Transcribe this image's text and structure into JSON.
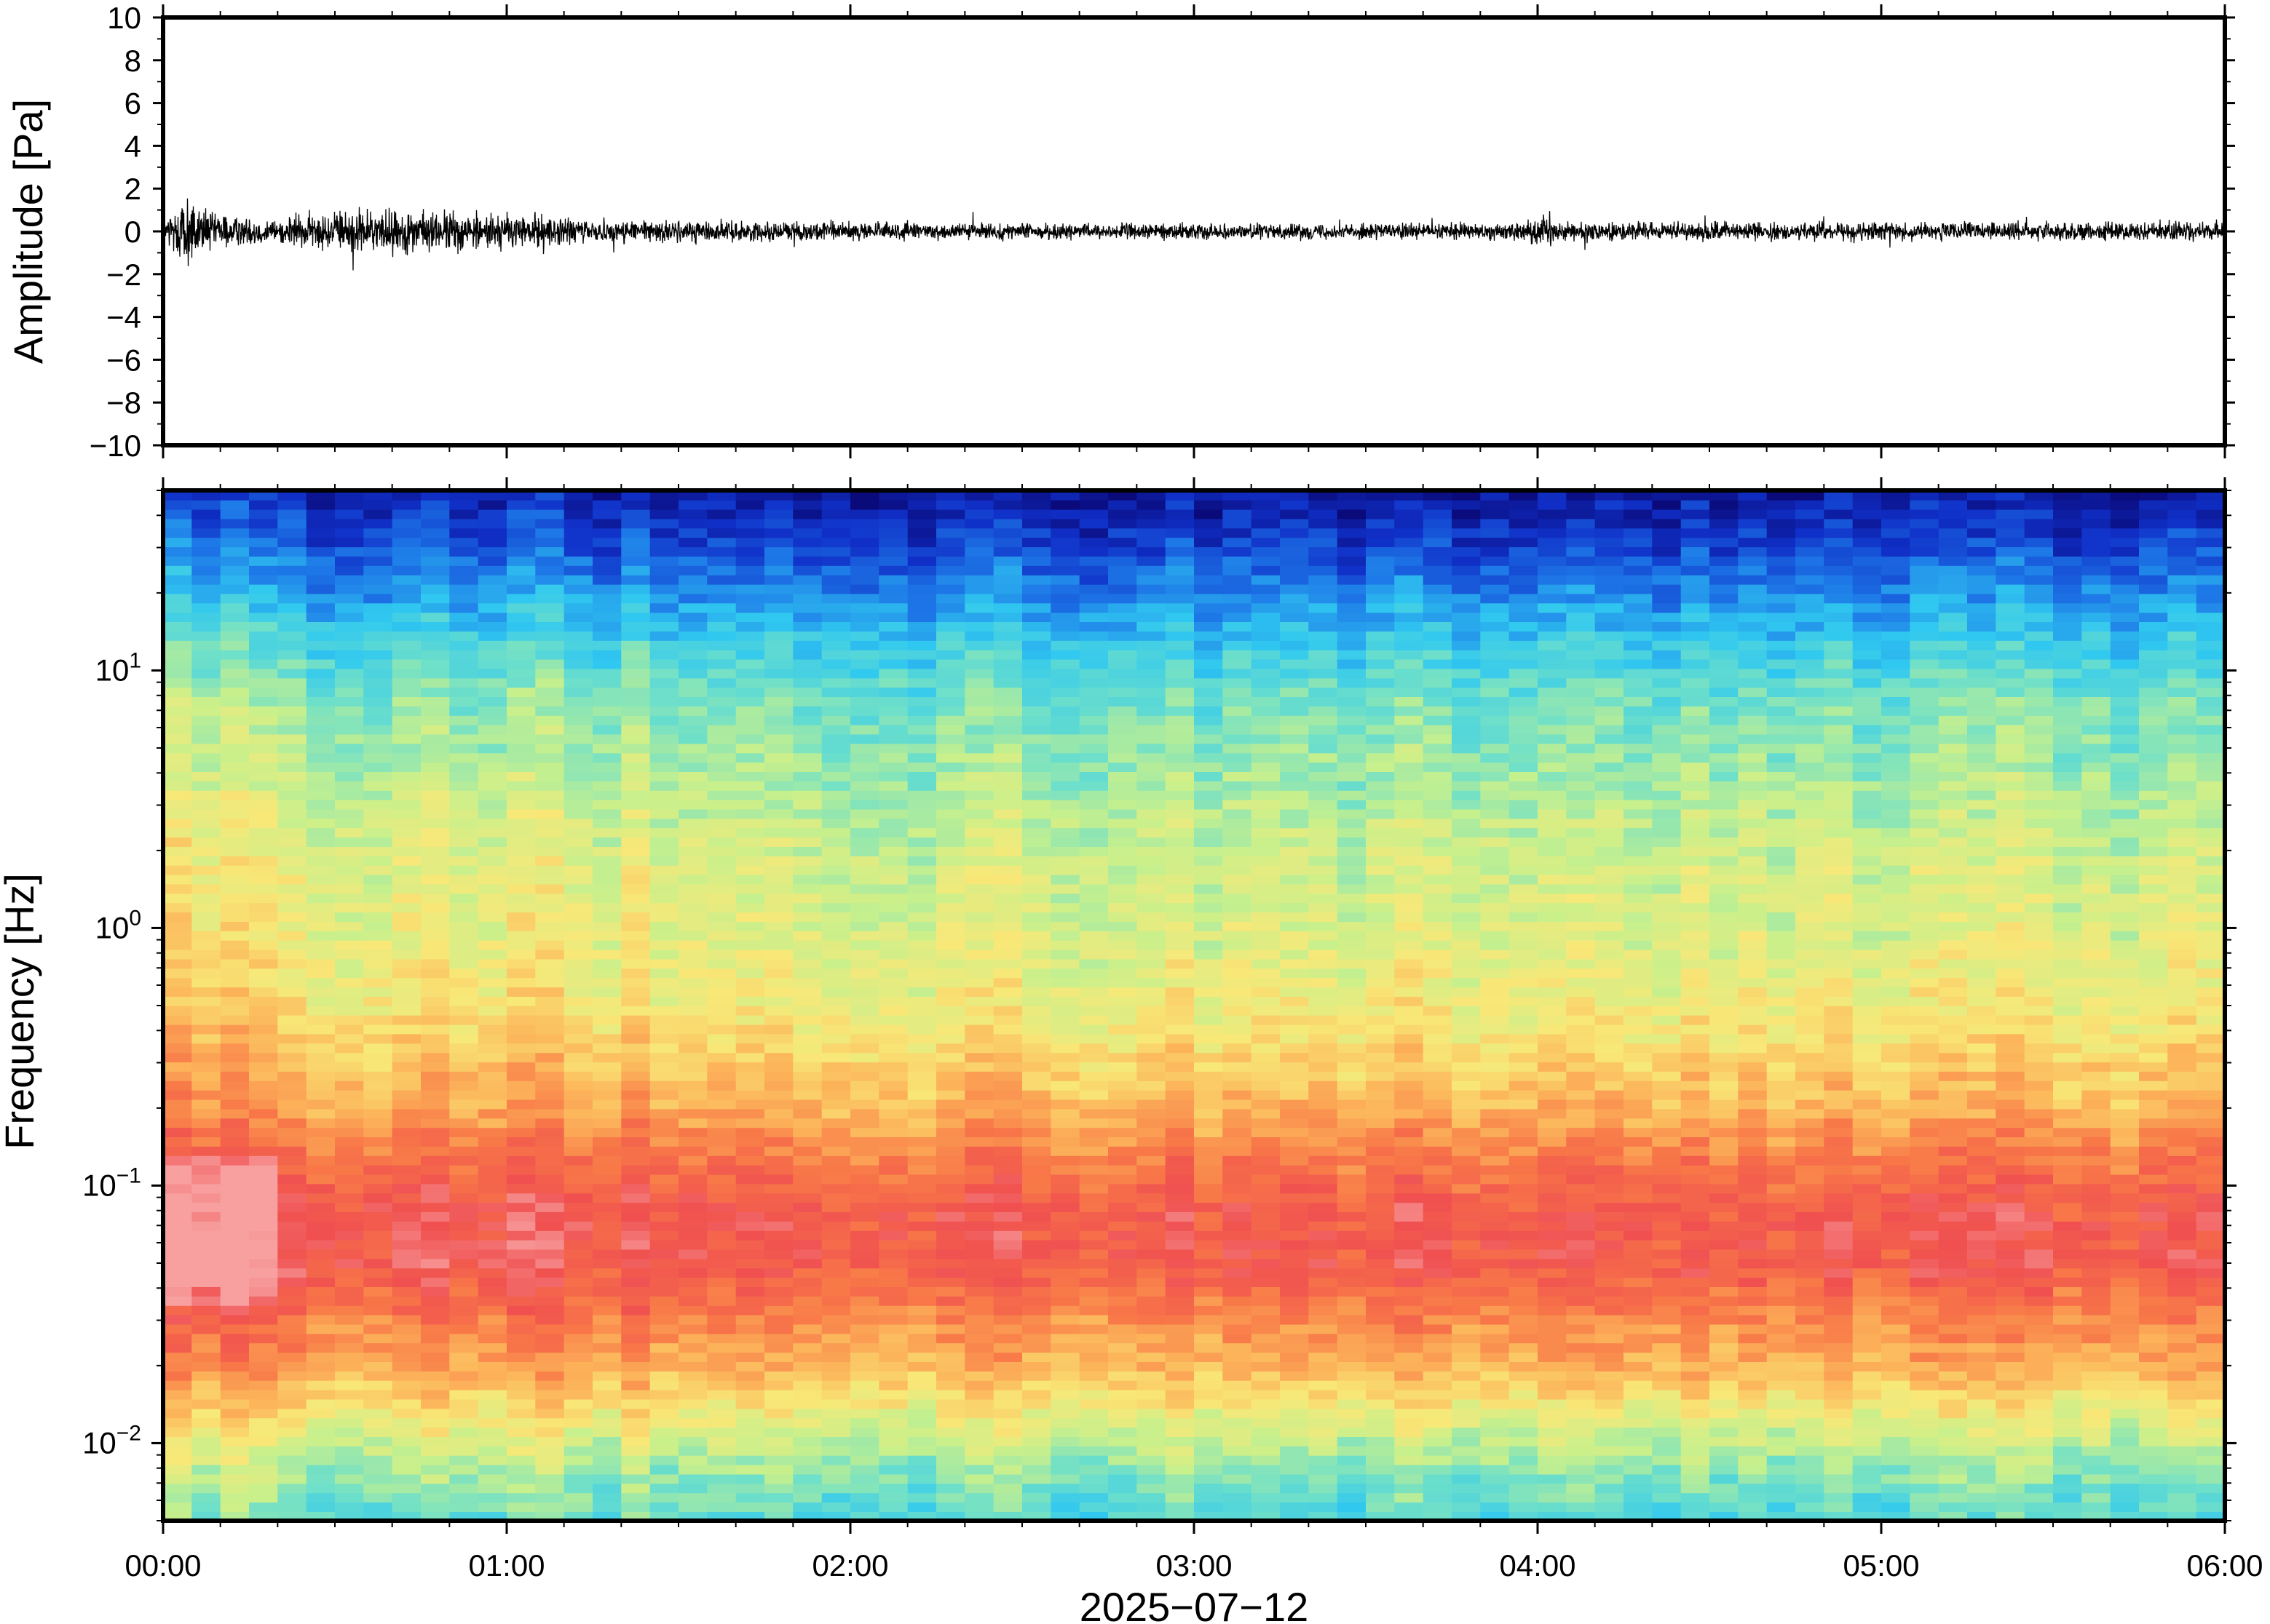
{
  "chart_data": [
    {
      "type": "line",
      "panel": "waveform",
      "ylabel": "Amplitude [Pa]",
      "ylim": [
        -10,
        10
      ],
      "yticks": [
        10,
        8,
        6,
        4,
        2,
        0,
        -2,
        -4,
        -6,
        -8,
        -10
      ],
      "ytick_labels": [
        "10",
        "8",
        "6",
        "4",
        "2",
        "0",
        "−2",
        "−4",
        "−6",
        "−8",
        "−10"
      ],
      "xlim_minutes": [
        0,
        360
      ],
      "series": [
        {
          "color": "#000000",
          "envelope": {
            "minutes": [
              0,
              2,
              5,
              8,
              12,
              20,
              30,
              45,
              60,
              75,
              90,
              120,
              150,
              180,
              210,
              238,
              240,
              245,
              270,
              300,
              330,
              360
            ],
            "amplitude": [
              0.6,
              1.8,
              2.3,
              1.4,
              1.0,
              0.8,
              1.4,
              1.4,
              1.2,
              0.8,
              0.7,
              0.6,
              0.5,
              0.5,
              0.5,
              0.6,
              1.4,
              0.6,
              0.6,
              0.6,
              0.6,
              0.6
            ]
          }
        }
      ]
    },
    {
      "type": "heatmap",
      "panel": "spectrogram",
      "ylabel": "Frequency [Hz]",
      "yscale": "log",
      "ylim": [
        0.005,
        50
      ],
      "yticks": [
        0.01,
        0.1,
        1,
        10
      ],
      "ytick_labels": [
        {
          "base": "10",
          "exp": "−2"
        },
        {
          "base": "10",
          "exp": "−1"
        },
        {
          "base": "10",
          "exp": "0"
        },
        {
          "base": "10",
          "exp": "1"
        }
      ],
      "xlabel": "2025−07−12",
      "xlim_minutes": [
        0,
        360
      ],
      "xtick_minutes": [
        0,
        60,
        120,
        180,
        240,
        300,
        360
      ],
      "xtick_labels": [
        "00:00",
        "01:00",
        "02:00",
        "03:00",
        "04:00",
        "05:00",
        "06:00"
      ],
      "colormap": [
        "#0a0a7a",
        "#1030c8",
        "#1e7ae8",
        "#30c8f0",
        "#70e0c8",
        "#c8f08c",
        "#f8e878",
        "#fcb45a",
        "#f87848",
        "#f05050",
        "#f8a0a0"
      ],
      "intensity_profile": {
        "log10_freq": [
          -2.3,
          -2.1,
          -1.9,
          -1.7,
          -1.5,
          -1.3,
          -1.1,
          -0.9,
          -0.7,
          -0.5,
          -0.3,
          0,
          0.3,
          0.6,
          0.9,
          1.1,
          1.3,
          1.5,
          1.7
        ],
        "level": [
          0.36,
          0.44,
          0.56,
          0.7,
          0.78,
          0.88,
          0.88,
          0.8,
          0.7,
          0.64,
          0.58,
          0.54,
          0.52,
          0.46,
          0.4,
          0.32,
          0.22,
          0.12,
          0.04
        ]
      }
    }
  ]
}
